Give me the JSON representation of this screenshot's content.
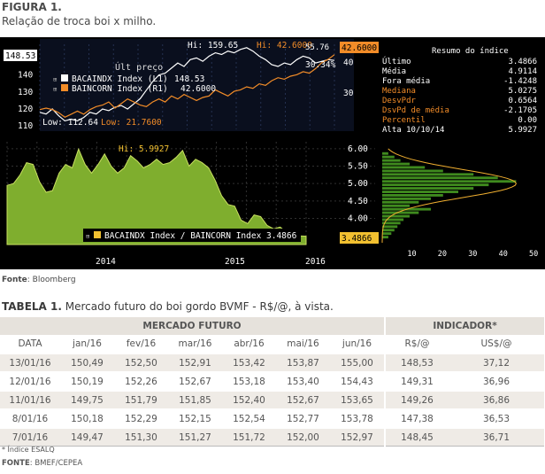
{
  "figure": {
    "label": "FIGURA 1.",
    "subtitle": "Relação de troca boi x milho."
  },
  "chart_data": [
    {
      "type": "line",
      "panel": "upper",
      "title": "",
      "top_label": "Últ preço",
      "series": [
        {
          "name": "BACAINDX Index (L1)",
          "last": "148.53",
          "color": "#ffffff"
        },
        {
          "name": "BAINCORN Index (R1)",
          "last": "42.6000",
          "color": "#f28c28"
        }
      ],
      "annotations": {
        "hi_white": "Hi: 159.65",
        "hi_orange": "Hi: 42.6000",
        "low_white": "Low: 112.64",
        "low_orange": "Low: 21.7600",
        "right_pct": "30.34%",
        "right_tag_value": "42.6000",
        "left_tag_value": "148.53",
        "top_right_value": "55.76"
      },
      "left_ticks": [
        "150",
        "140",
        "130",
        "120",
        "110"
      ],
      "right_ticks": [
        "40",
        "30"
      ],
      "ylim_left": [
        108,
        158
      ],
      "ylim_right": [
        18,
        46
      ],
      "white_values": [
        118,
        117,
        120,
        116,
        113,
        114,
        113,
        115,
        118,
        117,
        120,
        119,
        121,
        122,
        120,
        123,
        126,
        131,
        136,
        140,
        141,
        144,
        147,
        145,
        149,
        150,
        148,
        151,
        153,
        152,
        154,
        153,
        155,
        156,
        154,
        151,
        149,
        146,
        145,
        147,
        146,
        149,
        151,
        150,
        147,
        148,
        149,
        148.5
      ],
      "orange_values": [
        24.5,
        25,
        24.5,
        23.5,
        22,
        23,
        24,
        23,
        24.5,
        25.5,
        26,
        27,
        25,
        26.5,
        28,
        27,
        26,
        25.5,
        27,
        28,
        27,
        29,
        28,
        29.5,
        28.5,
        27.5,
        28.5,
        29,
        31,
        30,
        29,
        30.5,
        31,
        32,
        31.5,
        33,
        32.5,
        34,
        35,
        34.5,
        35.5,
        36,
        37,
        36.5,
        38,
        40,
        41,
        42.6
      ]
    },
    {
      "type": "area",
      "panel": "lower",
      "title": "",
      "series": [
        {
          "name": "BACAINDX Index / BAINCORN Index",
          "last": "3.4866",
          "color": "#8ab83a"
        }
      ],
      "annotations": {
        "hi": "Hi: 5.9927",
        "right_tag_value": "3.4866"
      },
      "y_ticks": [
        "6.00",
        "5.50",
        "5.00",
        "4.50",
        "4.00"
      ],
      "ylim": [
        3.25,
        6.2
      ],
      "x_ticks": [
        "2014",
        "2015",
        "2016"
      ],
      "values": [
        4.95,
        5.0,
        5.25,
        5.6,
        5.55,
        5.05,
        4.75,
        4.8,
        5.3,
        5.55,
        5.45,
        5.99,
        5.55,
        5.3,
        5.55,
        5.85,
        5.5,
        5.3,
        5.45,
        5.8,
        5.65,
        5.45,
        5.55,
        5.7,
        5.55,
        5.6,
        5.75,
        5.95,
        5.5,
        5.7,
        5.6,
        5.45,
        5.1,
        4.65,
        4.4,
        4.35,
        3.95,
        3.85,
        4.1,
        4.05,
        3.8,
        3.7,
        3.75,
        3.6,
        3.65,
        3.5,
        3.49
      ]
    },
    {
      "type": "bar",
      "panel": "histogram",
      "title": "",
      "x_ticks": [
        "10",
        "20",
        "30",
        "40",
        "50"
      ],
      "xlim": [
        0,
        50
      ],
      "levels": [
        5.85,
        5.75,
        5.65,
        5.55,
        5.45,
        5.35,
        5.25,
        5.15,
        5.05,
        4.95,
        4.85,
        4.75,
        4.65,
        4.55,
        4.45,
        4.35,
        4.25,
        4.15,
        4.05,
        3.95,
        3.85,
        3.75,
        3.65,
        3.55,
        3.45
      ],
      "counts": [
        2,
        4,
        6,
        9,
        14,
        20,
        30,
        38,
        44,
        35,
        30,
        25,
        20,
        16,
        12,
        9,
        16,
        12,
        9,
        7,
        6,
        5,
        4,
        3,
        2
      ]
    }
  ],
  "stats_panel": {
    "title": "Resumo do índice",
    "rows": [
      {
        "label": "Último",
        "value": "3.4866",
        "color": "#ffffff"
      },
      {
        "label": "Média",
        "value": "4.9114",
        "color": "#ffffff"
      },
      {
        "label": "Fora média",
        "value": "-1.4248",
        "color": "#ffffff"
      },
      {
        "label": "Mediana",
        "value": "5.0275",
        "color": "#f28c28"
      },
      {
        "label": "DesvPdr",
        "value": "0.6564",
        "color": "#f28c28"
      },
      {
        "label": "DsvPd de média",
        "value": "-2.1705",
        "color": "#f28c28"
      },
      {
        "label": "Percentil",
        "value": "0.00",
        "color": "#f28c28"
      },
      {
        "label": "Alta 10/10/14",
        "value": "5.9927",
        "color": "#ffffff"
      }
    ]
  },
  "source_fig": {
    "label": "Fonte",
    "text": ": Bloomberg"
  },
  "table": {
    "label": "TABELA 1.",
    "title": " Mercado futuro do boi gordo BVMF - R$/@, à vista.",
    "group_futuro": "MERCADO FUTURO",
    "group_indicador": "INDICADOR*",
    "headers": [
      "DATA",
      "jan/16",
      "fev/16",
      "mar/16",
      "abr/16",
      "mai/16",
      "jun/16",
      "R$/@",
      "US$/@"
    ],
    "rows": [
      [
        "13/01/16",
        "150,49",
        "152,50",
        "152,91",
        "153,42",
        "153,87",
        "155,00",
        "148,53",
        "37,12"
      ],
      [
        "12/01/16",
        "150,19",
        "152,26",
        "152,67",
        "153,18",
        "153,40",
        "154,43",
        "149,31",
        "36,96"
      ],
      [
        "11/01/16",
        "149,75",
        "151,79",
        "151,85",
        "152,40",
        "152,67",
        "153,65",
        "149,26",
        "36,86"
      ],
      [
        "8/01/16",
        "150,18",
        "152,29",
        "152,15",
        "152,54",
        "152,77",
        "153,78",
        "147,38",
        "36,53"
      ],
      [
        "7/01/16",
        "149,47",
        "151,30",
        "151,27",
        "151,72",
        "152,00",
        "152,97",
        "148,45",
        "36,71"
      ]
    ]
  },
  "footnote": "* Índice ESALQ",
  "source_tab": {
    "label": "FONTE",
    "text": ": BMEF/CEPEA"
  }
}
